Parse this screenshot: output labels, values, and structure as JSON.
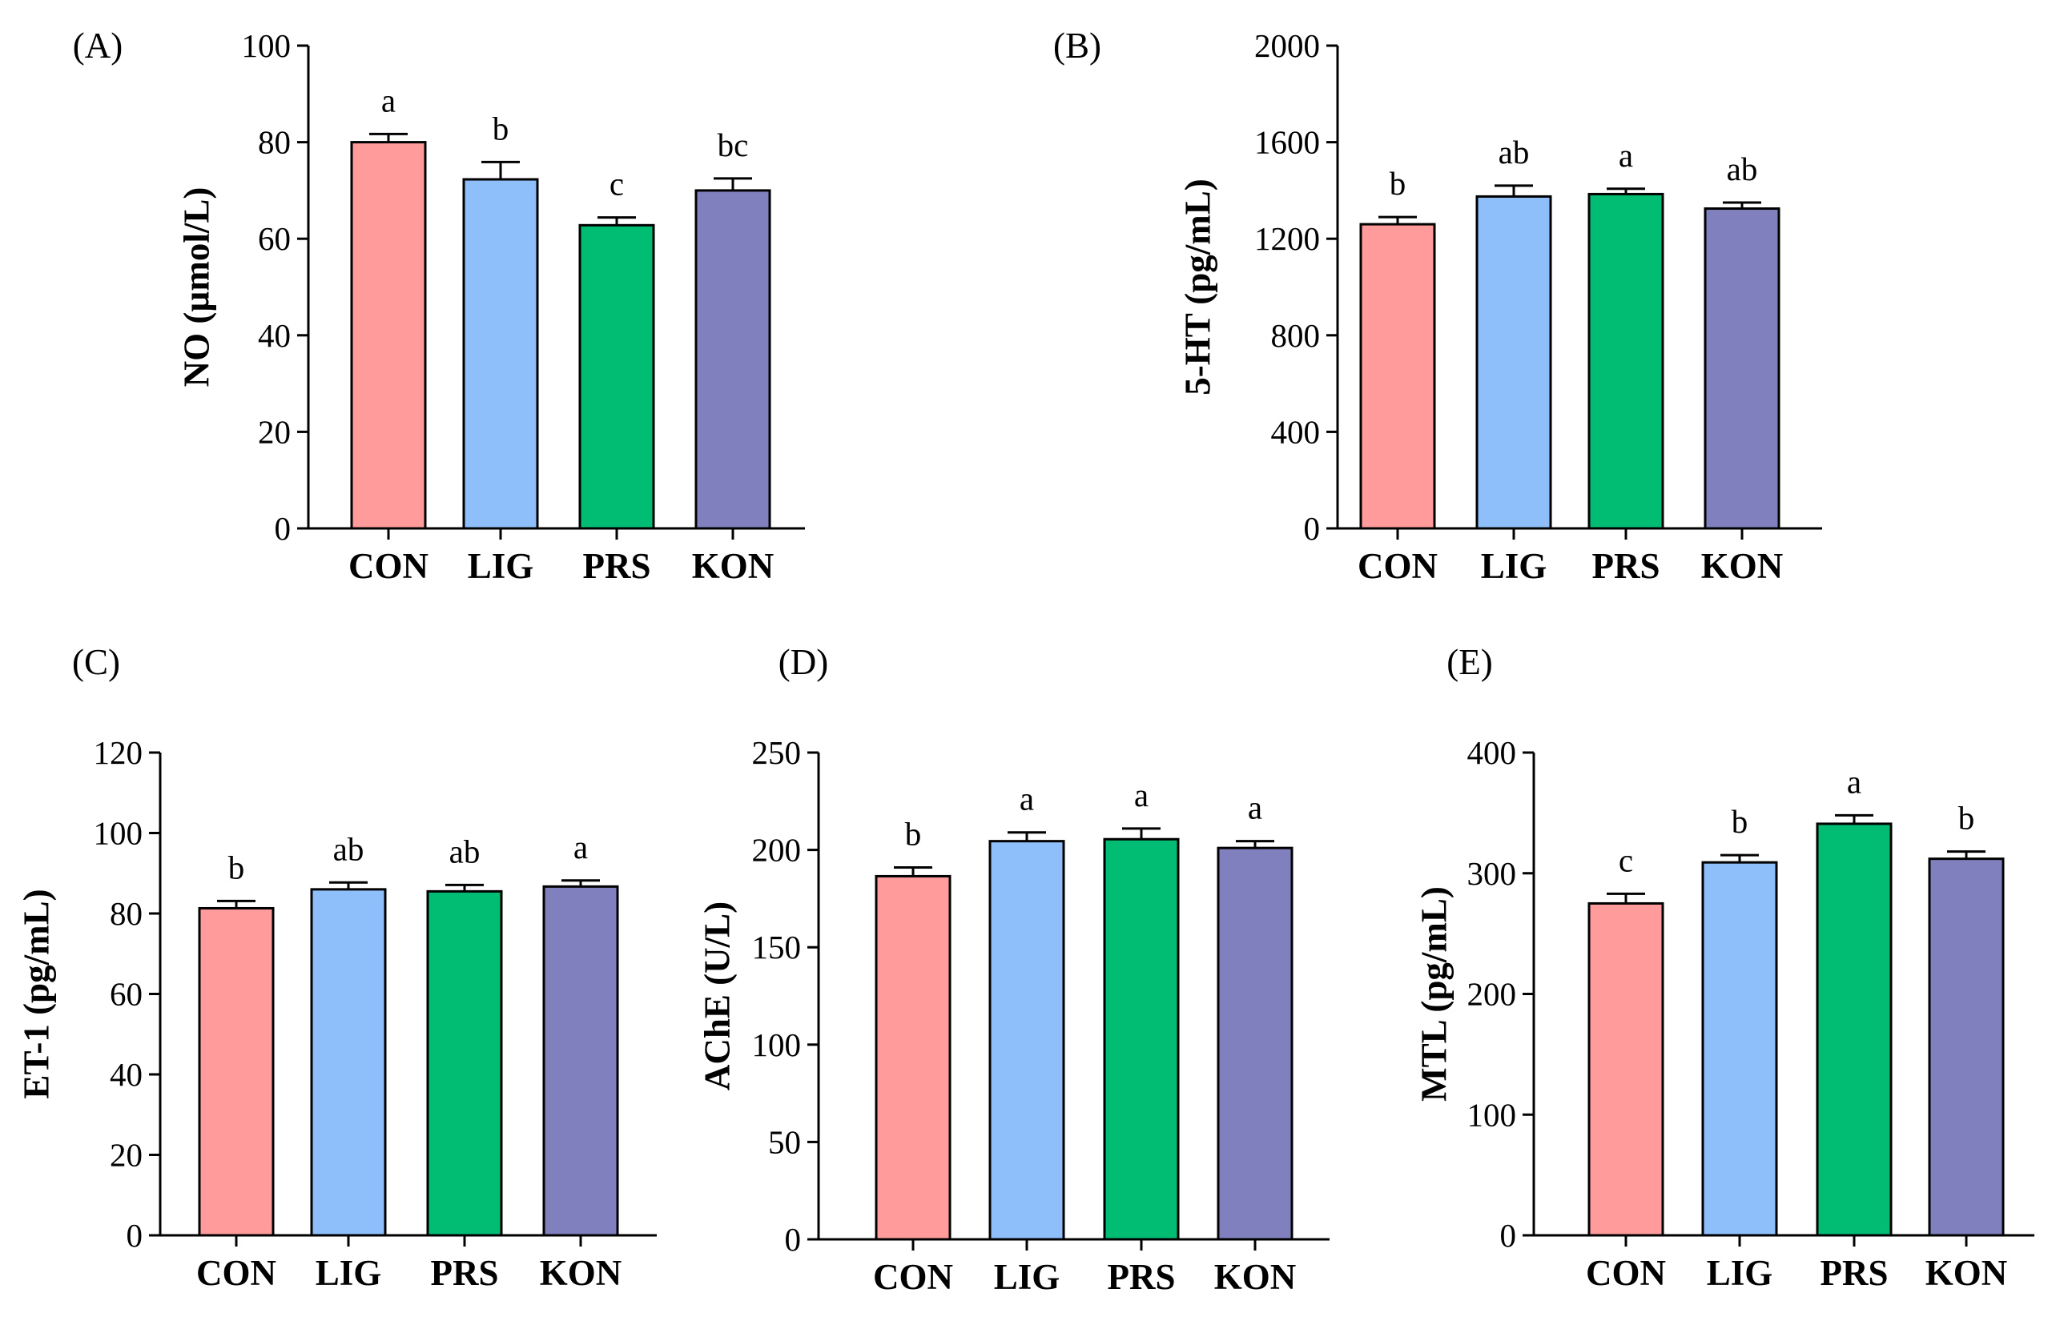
{
  "colors": {
    "CON": "#FF9B9B",
    "LIG": "#8FBFFB",
    "PRS": "#00BD73",
    "KON": "#8080BF"
  },
  "chart_data": [
    {
      "type": "bar",
      "panel": "(A)",
      "ylabel": "NO (µmol/L)",
      "categories": [
        "CON",
        "LIG",
        "PRS",
        "KON"
      ],
      "values": [
        80,
        72.3,
        62.8,
        70
      ],
      "errors": [
        1.7,
        3.6,
        1.6,
        2.5
      ],
      "significance": [
        "a",
        "b",
        "c",
        "bc"
      ],
      "ylim": [
        0,
        100
      ],
      "yticks": [
        0,
        20,
        40,
        60,
        80,
        100
      ]
    },
    {
      "type": "bar",
      "panel": "(B)",
      "ylabel": "5-HT (pg/mL)",
      "categories": [
        "CON",
        "LIG",
        "PRS",
        "KON"
      ],
      "values": [
        1260,
        1375,
        1385,
        1325
      ],
      "errors": [
        30,
        45,
        22,
        25
      ],
      "significance": [
        "b",
        "ab",
        "a",
        "ab"
      ],
      "ylim": [
        0,
        2000
      ],
      "yticks": [
        0,
        400,
        800,
        1200,
        1600,
        2000
      ]
    },
    {
      "type": "bar",
      "panel": "(C)",
      "ylabel": "ET-1 (pg/mL)",
      "categories": [
        "CON",
        "LIG",
        "PRS",
        "KON"
      ],
      "values": [
        81.3,
        86,
        85.5,
        86.7
      ],
      "errors": [
        1.8,
        1.7,
        1.6,
        1.5
      ],
      "significance": [
        "b",
        "ab",
        "ab",
        "a"
      ],
      "ylim": [
        0,
        120
      ],
      "yticks": [
        0,
        20,
        40,
        60,
        80,
        100,
        120
      ]
    },
    {
      "type": "bar",
      "panel": "(D)",
      "ylabel": "AChE (U/L)",
      "categories": [
        "CON",
        "LIG",
        "PRS",
        "KON"
      ],
      "values": [
        186.5,
        204.5,
        205.5,
        201
      ],
      "errors": [
        4.5,
        4.5,
        5.5,
        3.5
      ],
      "significance": [
        "b",
        "a",
        "a",
        "a"
      ],
      "ylim": [
        0,
        250
      ],
      "yticks": [
        0,
        50,
        100,
        150,
        200,
        250
      ]
    },
    {
      "type": "bar",
      "panel": "(E)",
      "ylabel": "MTL (pg/mL)",
      "categories": [
        "CON",
        "LIG",
        "PRS",
        "KON"
      ],
      "values": [
        275,
        309,
        341,
        312
      ],
      "errors": [
        8,
        6,
        7,
        6
      ],
      "significance": [
        "c",
        "b",
        "a",
        "b"
      ],
      "ylim": [
        0,
        400
      ],
      "yticks": [
        0,
        100,
        200,
        300,
        400
      ]
    }
  ]
}
